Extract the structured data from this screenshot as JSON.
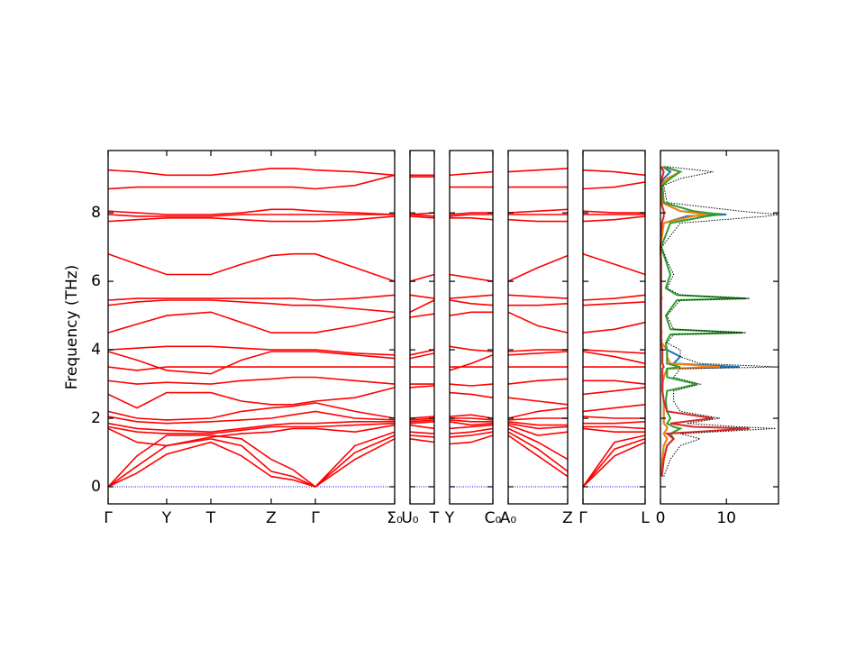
{
  "chart_data": {
    "type": "band",
    "ylabel": "Frequency (THz)",
    "ylim": [
      -0.5,
      9.82
    ],
    "yticks": [
      0,
      2,
      4,
      6,
      8
    ],
    "reference_line": {
      "value": 0,
      "color": "#0000ff"
    },
    "panels": [
      {
        "color": "#ff0000",
        "xlim": [
          0,
          3.18
        ],
        "xticks": [
          {
            "value": 0,
            "label": "Γ"
          },
          {
            "value": 0.65,
            "label": "Y"
          },
          {
            "value": 1.14,
            "label": "T"
          },
          {
            "value": 1.81,
            "label": "Z"
          },
          {
            "value": 2.3,
            "label": "Γ"
          },
          {
            "value": 3.18,
            "label": "Σ₀"
          }
        ],
        "x": [
          0,
          0.32,
          0.65,
          1.14,
          1.48,
          1.81,
          2.05,
          2.3,
          2.74,
          3.18
        ],
        "bands": [
          [
            0,
            0.4,
            0.95,
            1.3,
            0.9,
            0.3,
            0.2,
            0,
            0.8,
            1.4
          ],
          [
            0,
            0.6,
            1.2,
            1.4,
            1.2,
            0.45,
            0.3,
            0,
            1.0,
            1.5
          ],
          [
            0,
            0.9,
            1.5,
            1.5,
            1.4,
            0.8,
            0.5,
            0,
            1.2,
            1.6
          ],
          [
            1.7,
            1.3,
            1.2,
            1.45,
            1.55,
            1.6,
            1.7,
            1.7,
            1.6,
            1.8
          ],
          [
            1.75,
            1.6,
            1.55,
            1.55,
            1.65,
            1.75,
            1.75,
            1.75,
            1.8,
            1.85
          ],
          [
            1.85,
            1.7,
            1.65,
            1.6,
            1.7,
            1.8,
            1.85,
            1.85,
            1.9,
            1.9
          ],
          [
            2.05,
            1.9,
            1.85,
            1.9,
            1.95,
            2.0,
            2.1,
            2.2,
            2.0,
            1.95
          ],
          [
            2.2,
            2.0,
            1.95,
            2.0,
            2.2,
            2.3,
            2.35,
            2.45,
            2.2,
            2.0
          ],
          [
            2.7,
            2.3,
            2.75,
            2.75,
            2.5,
            2.4,
            2.4,
            2.5,
            2.6,
            2.9
          ],
          [
            3.1,
            3.0,
            3.05,
            3.0,
            3.1,
            3.15,
            3.2,
            3.2,
            3.1,
            3.0
          ],
          [
            3.5,
            3.4,
            3.5,
            3.5,
            3.5,
            3.5,
            3.5,
            3.5,
            3.5,
            3.5
          ],
          [
            3.95,
            3.7,
            3.4,
            3.3,
            3.7,
            3.95,
            3.95,
            3.95,
            3.85,
            3.75
          ],
          [
            4.0,
            4.05,
            4.1,
            4.1,
            4.05,
            4.0,
            4.0,
            4.0,
            3.9,
            3.85
          ],
          [
            4.5,
            4.75,
            5.0,
            5.1,
            4.8,
            4.5,
            4.5,
            4.5,
            4.7,
            4.95
          ],
          [
            5.3,
            5.4,
            5.45,
            5.45,
            5.4,
            5.35,
            5.3,
            5.3,
            5.2,
            5.1
          ],
          [
            5.45,
            5.5,
            5.5,
            5.5,
            5.5,
            5.5,
            5.5,
            5.45,
            5.5,
            5.6
          ],
          [
            6.8,
            6.5,
            6.2,
            6.2,
            6.5,
            6.75,
            6.8,
            6.8,
            6.4,
            6.0
          ],
          [
            7.75,
            7.8,
            7.85,
            7.85,
            7.8,
            7.75,
            7.75,
            7.75,
            7.8,
            7.9
          ],
          [
            7.95,
            7.9,
            7.9,
            7.9,
            7.95,
            7.95,
            7.95,
            7.95,
            7.95,
            7.95
          ],
          [
            8.05,
            8.0,
            7.95,
            7.95,
            8.0,
            8.1,
            8.1,
            8.05,
            8.0,
            7.95
          ],
          [
            8.7,
            8.75,
            8.75,
            8.75,
            8.75,
            8.75,
            8.75,
            8.7,
            8.8,
            9.1
          ],
          [
            9.25,
            9.2,
            9.1,
            9.1,
            9.2,
            9.3,
            9.3,
            9.25,
            9.2,
            9.1
          ]
        ]
      },
      {
        "color": "#ff0000",
        "xlim": [
          0,
          0.27
        ],
        "xticks": [
          {
            "value": 0,
            "label": "U₀"
          },
          {
            "value": 0.27,
            "label": "T"
          }
        ],
        "x": [
          0,
          0.27
        ],
        "bands": [
          [
            1.4,
            1.3
          ],
          [
            1.5,
            1.45
          ],
          [
            1.6,
            1.55
          ],
          [
            1.8,
            1.7
          ],
          [
            1.85,
            1.9
          ],
          [
            1.9,
            1.95
          ],
          [
            1.95,
            2.0
          ],
          [
            2.0,
            2.05
          ],
          [
            2.9,
            2.95
          ],
          [
            3.0,
            3.0
          ],
          [
            3.5,
            3.5
          ],
          [
            3.75,
            3.9
          ],
          [
            3.85,
            4.0
          ],
          [
            4.95,
            5.05
          ],
          [
            5.1,
            5.45
          ],
          [
            5.6,
            5.5
          ],
          [
            6.0,
            6.2
          ],
          [
            7.9,
            7.85
          ],
          [
            7.95,
            7.9
          ],
          [
            7.95,
            8.0
          ],
          [
            9.05,
            9.05
          ],
          [
            9.1,
            9.1
          ]
        ]
      },
      {
        "color": "#ff0000",
        "xlim": [
          0,
          0.48
        ],
        "xticks": [
          {
            "value": 0,
            "label": "Y"
          },
          {
            "value": 0.48,
            "label": "C₀"
          }
        ],
        "x": [
          0,
          0.24,
          0.48
        ],
        "bands": [
          [
            1.25,
            1.3,
            1.5
          ],
          [
            1.45,
            1.5,
            1.6
          ],
          [
            1.55,
            1.6,
            1.7
          ],
          [
            1.7,
            1.75,
            1.8
          ],
          [
            1.9,
            1.8,
            1.85
          ],
          [
            1.95,
            1.9,
            1.9
          ],
          [
            2.0,
            2.0,
            1.95
          ],
          [
            2.05,
            2.1,
            2.0
          ],
          [
            2.75,
            2.7,
            2.6
          ],
          [
            3.0,
            2.95,
            3.0
          ],
          [
            3.5,
            3.5,
            3.5
          ],
          [
            3.4,
            3.6,
            3.85
          ],
          [
            4.1,
            4.0,
            3.95
          ],
          [
            5.0,
            5.1,
            5.1
          ],
          [
            5.45,
            5.35,
            5.3
          ],
          [
            5.5,
            5.55,
            5.6
          ],
          [
            6.2,
            6.1,
            6.0
          ],
          [
            7.85,
            7.85,
            7.8
          ],
          [
            7.9,
            7.95,
            7.95
          ],
          [
            7.95,
            8.0,
            8.0
          ],
          [
            8.75,
            8.75,
            8.75
          ],
          [
            9.1,
            9.15,
            9.2
          ]
        ]
      },
      {
        "color": "#ff0000",
        "xlim": [
          0,
          0.66
        ],
        "xticks": [
          {
            "value": 0,
            "label": "A₀"
          },
          {
            "value": 0.66,
            "label": "Z"
          }
        ],
        "x": [
          0,
          0.33,
          0.66
        ],
        "bands": [
          [
            1.5,
            0.9,
            0.3
          ],
          [
            1.6,
            1.1,
            0.45
          ],
          [
            1.7,
            1.3,
            0.8
          ],
          [
            1.8,
            1.5,
            1.6
          ],
          [
            1.85,
            1.7,
            1.75
          ],
          [
            1.9,
            1.8,
            1.8
          ],
          [
            1.95,
            2.0,
            2.0
          ],
          [
            2.0,
            2.2,
            2.3
          ],
          [
            2.6,
            2.5,
            2.4
          ],
          [
            3.0,
            3.1,
            3.15
          ],
          [
            3.5,
            3.5,
            3.5
          ],
          [
            3.85,
            3.9,
            3.95
          ],
          [
            3.95,
            4.0,
            4.0
          ],
          [
            5.1,
            4.7,
            4.5
          ],
          [
            5.3,
            5.3,
            5.35
          ],
          [
            5.6,
            5.55,
            5.5
          ],
          [
            6.0,
            6.4,
            6.75
          ],
          [
            7.8,
            7.75,
            7.75
          ],
          [
            7.95,
            7.95,
            7.95
          ],
          [
            8.0,
            8.05,
            8.1
          ],
          [
            8.75,
            8.75,
            8.75
          ],
          [
            9.2,
            9.25,
            9.3
          ]
        ]
      },
      {
        "color": "#ff0000",
        "xlim": [
          0,
          0.69
        ],
        "xticks": [
          {
            "value": 0,
            "label": "Γ"
          },
          {
            "value": 0.69,
            "label": "L"
          }
        ],
        "x": [
          0,
          0.35,
          0.69
        ],
        "bands": [
          [
            0,
            0.9,
            1.3
          ],
          [
            0,
            1.1,
            1.4
          ],
          [
            0,
            1.3,
            1.5
          ],
          [
            1.7,
            1.6,
            1.6
          ],
          [
            1.75,
            1.75,
            1.7
          ],
          [
            1.85,
            1.85,
            1.9
          ],
          [
            2.05,
            2.0,
            2.0
          ],
          [
            2.2,
            2.3,
            2.4
          ],
          [
            2.7,
            2.8,
            2.9
          ],
          [
            3.1,
            3.1,
            3.0
          ],
          [
            3.5,
            3.5,
            3.5
          ],
          [
            3.95,
            3.8,
            3.6
          ],
          [
            4.0,
            3.95,
            3.9
          ],
          [
            4.5,
            4.6,
            4.8
          ],
          [
            5.3,
            5.35,
            5.4
          ],
          [
            5.45,
            5.5,
            5.6
          ],
          [
            6.8,
            6.5,
            6.2
          ],
          [
            7.75,
            7.8,
            7.9
          ],
          [
            7.95,
            7.95,
            7.95
          ],
          [
            8.05,
            8.0,
            8.0
          ],
          [
            8.7,
            8.75,
            8.9
          ],
          [
            9.25,
            9.2,
            9.1
          ]
        ]
      }
    ],
    "dos": {
      "xlim": [
        0,
        17.9
      ],
      "xticks": [
        0,
        10
      ],
      "y": [
        0.3,
        0.8,
        1.2,
        1.4,
        1.55,
        1.7,
        1.75,
        1.85,
        2.0,
        2.2,
        2.5,
        2.8,
        3.0,
        3.2,
        3.45,
        3.5,
        3.6,
        3.8,
        4.0,
        4.2,
        4.45,
        4.5,
        4.6,
        5.0,
        5.45,
        5.5,
        5.6,
        5.8,
        6.2,
        6.6,
        7.0,
        7.7,
        7.9,
        7.95,
        8.05,
        8.3,
        8.8,
        9.0,
        9.2,
        9.35
      ],
      "series": [
        {
          "color": "#1f77b4",
          "style": "solid",
          "values": [
            0.1,
            0.3,
            0.5,
            1,
            0.5,
            1,
            1,
            0.5,
            0.5,
            0.5,
            0.5,
            0.3,
            0.3,
            0.5,
            1,
            12,
            2,
            3,
            1,
            0.2,
            0.1,
            0.2,
            0.1,
            0.1,
            0.1,
            0.2,
            0.1,
            0.1,
            0.1,
            0.1,
            0,
            0.5,
            4,
            10,
            3,
            0.2,
            0.1,
            0.5,
            1.5,
            0.3
          ]
        },
        {
          "color": "#ff7f0e",
          "style": "solid",
          "values": [
            0.1,
            0.3,
            0.5,
            1,
            0.5,
            1,
            1,
            0.5,
            0.5,
            0.5,
            0.5,
            0.3,
            0.3,
            0.5,
            1,
            9,
            1.5,
            1,
            1,
            0.2,
            0.1,
            0.2,
            0.1,
            0.1,
            0.1,
            0.2,
            0.1,
            0.1,
            0.1,
            0.1,
            0,
            0.5,
            5,
            7,
            3,
            0.2,
            0.1,
            1,
            3,
            0.3
          ]
        },
        {
          "color": "#2ca02c",
          "style": "solid",
          "values": [
            0.2,
            0.5,
            1,
            2,
            1.5,
            3,
            2,
            1,
            1.5,
            1,
            0.8,
            1,
            5.5,
            1,
            1,
            3,
            1,
            1,
            1,
            0.8,
            1.5,
            12.5,
            1.5,
            0.8,
            2.5,
            13,
            2.5,
            0.8,
            1.5,
            0.8,
            0.1,
            1.5,
            7,
            9,
            5,
            0.5,
            0.3,
            1.5,
            3,
            0.5
          ]
        },
        {
          "color": "#d62728",
          "style": "solid",
          "values": [
            0.2,
            0.5,
            1,
            2,
            1,
            13.5,
            5,
            1.5,
            8,
            1,
            0.5,
            0.3,
            0.3,
            0.3,
            0.3,
            0.5,
            0.3,
            0.3,
            0.3,
            0.1,
            0.1,
            0.1,
            0.1,
            0.1,
            0.1,
            0.1,
            0.1,
            0.1,
            0.1,
            0.1,
            0,
            0.2,
            0.5,
            0.5,
            0.5,
            0.1,
            0.1,
            0.2,
            0.5,
            0.1
          ]
        },
        {
          "color": "#000000",
          "style": "dotted",
          "values": [
            0.5,
            1.5,
            3,
            6,
            3,
            17.5,
            12,
            4,
            9,
            3,
            2,
            2,
            6,
            2,
            3,
            18,
            6,
            3,
            3,
            1,
            2,
            13,
            2,
            1,
            3,
            13.5,
            3,
            1,
            2,
            1,
            0.2,
            3,
            16,
            18,
            12,
            1,
            0.5,
            3,
            8,
            1
          ]
        }
      ]
    }
  }
}
